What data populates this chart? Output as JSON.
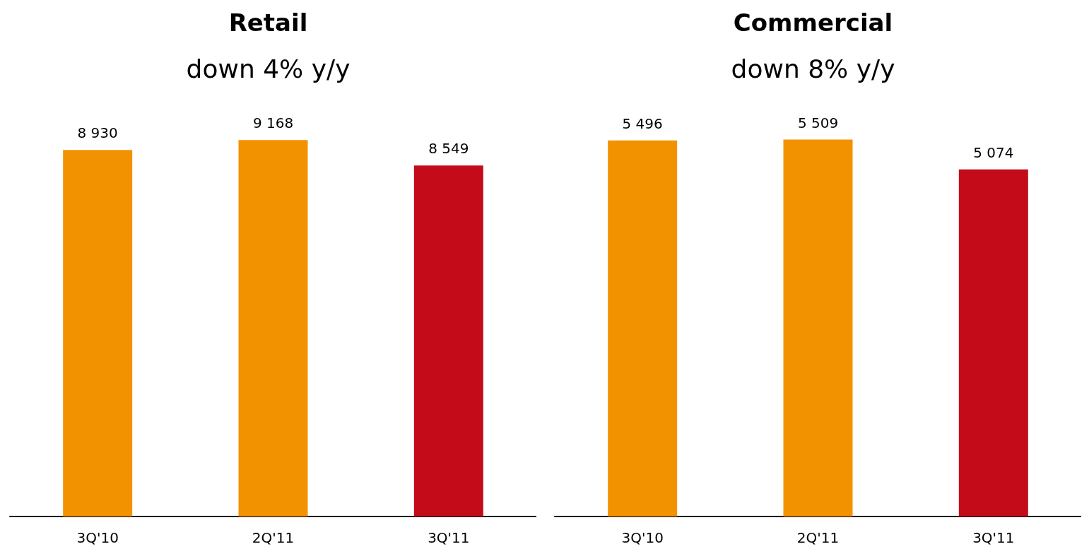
{
  "chart_data": [
    {
      "type": "bar",
      "title": "Retail",
      "subtitle": "down 4% y/y",
      "categories": [
        "3Q'10",
        "2Q'11",
        "3Q'11"
      ],
      "values": [
        8930,
        9168,
        8549
      ],
      "colors": [
        "#f39200",
        "#f39200",
        "#c40b1a"
      ],
      "value_labels": [
        "8 930",
        "9 168",
        "8 549"
      ]
    },
    {
      "type": "bar",
      "title": "Commercial",
      "subtitle": "down 8% y/y",
      "categories": [
        "3Q'10",
        "2Q'11",
        "3Q'11"
      ],
      "values": [
        5496,
        5509,
        5074
      ],
      "colors": [
        "#f39200",
        "#f39200",
        "#c40b1a"
      ],
      "value_labels": [
        "5 496",
        "5 509",
        "5 074"
      ]
    }
  ]
}
